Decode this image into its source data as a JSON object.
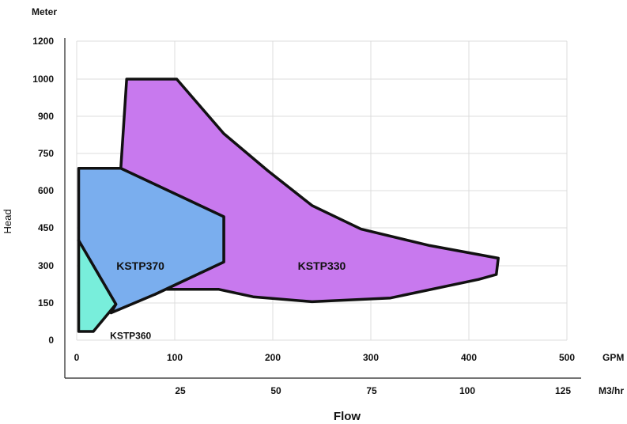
{
  "chart_data": {
    "type": "area",
    "ylabel": "Head",
    "y_unit": "Meter",
    "xlabel": "Flow",
    "y_ticks": [
      "0",
      "150",
      "300",
      "450",
      "600",
      "750",
      "900",
      "1000",
      "1200"
    ],
    "x_ticks_gpm": [
      "0",
      "100",
      "200",
      "300",
      "400",
      "500"
    ],
    "x_unit_gpm": "GPM",
    "x_ticks_m3hr": [
      "25",
      "50",
      "75",
      "100",
      "125"
    ],
    "x_unit_m3hr": "M3/hr",
    "grid": true,
    "series": [
      {
        "name": "KSTP330",
        "color": "#c879ee",
        "x_unit": "GPM",
        "outline": [
          [
            51,
            1000
          ],
          [
            102,
            1000
          ],
          [
            150,
            830
          ],
          [
            195,
            680
          ],
          [
            240,
            540
          ],
          [
            290,
            445
          ],
          [
            360,
            380
          ],
          [
            430,
            330
          ],
          [
            428,
            265
          ],
          [
            410,
            245
          ],
          [
            320,
            170
          ],
          [
            240,
            155
          ],
          [
            180,
            175
          ],
          [
            145,
            205
          ],
          [
            85,
            205
          ],
          [
            80,
            185
          ],
          [
            150,
            315
          ],
          [
            150,
            495
          ],
          [
            45,
            690
          ]
        ]
      },
      {
        "name": "KSTP370",
        "color": "#7aaeee",
        "x_unit": "GPM",
        "outline": [
          [
            2,
            690
          ],
          [
            45,
            690
          ],
          [
            150,
            495
          ],
          [
            150,
            315
          ],
          [
            80,
            185
          ],
          [
            35,
            110
          ],
          [
            40,
            145
          ],
          [
            2,
            400
          ]
        ]
      },
      {
        "name": "KSTP360",
        "color": "#78eedb",
        "x_unit": "GPM",
        "outline": [
          [
            2,
            400
          ],
          [
            40,
            145
          ],
          [
            17,
            35
          ],
          [
            2,
            35
          ]
        ]
      }
    ]
  }
}
